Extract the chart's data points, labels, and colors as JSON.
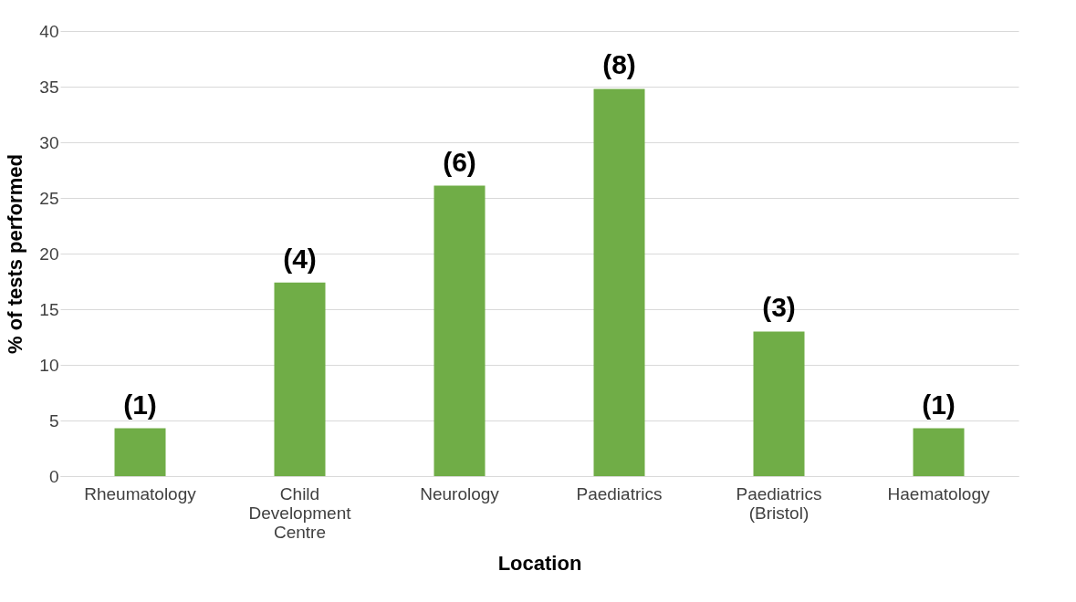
{
  "chart_data": {
    "type": "bar",
    "xlabel": "Location",
    "ylabel": "% of tests performed",
    "categories": [
      "Rheumatology",
      "Child Development Centre",
      "Neurology",
      "Paediatrics",
      "Paediatrics (Bristol)",
      "Haematology"
    ],
    "values": [
      4.3,
      17.4,
      26.1,
      34.8,
      13.0,
      4.3
    ],
    "annotations": [
      {
        "text": "(1)",
        "x": "Rheumatology",
        "y": 4.3
      },
      {
        "text": "(4)",
        "x": "Child Development Centre",
        "y": 17.4
      },
      {
        "text": "(6)",
        "x": "Neurology",
        "y": 26.1
      },
      {
        "text": "(8)",
        "x": "Paediatrics",
        "y": 34.8
      },
      {
        "text": "(3)",
        "x": "Paediatrics (Bristol)",
        "y": 13.0
      },
      {
        "text": "(1)",
        "x": "Haematology",
        "y": 4.3
      }
    ],
    "color": "#70ad47",
    "ylim": [
      0,
      40
    ],
    "yticks": [
      0,
      5,
      10,
      15,
      20,
      25,
      30,
      35,
      40
    ],
    "grid": "y"
  }
}
